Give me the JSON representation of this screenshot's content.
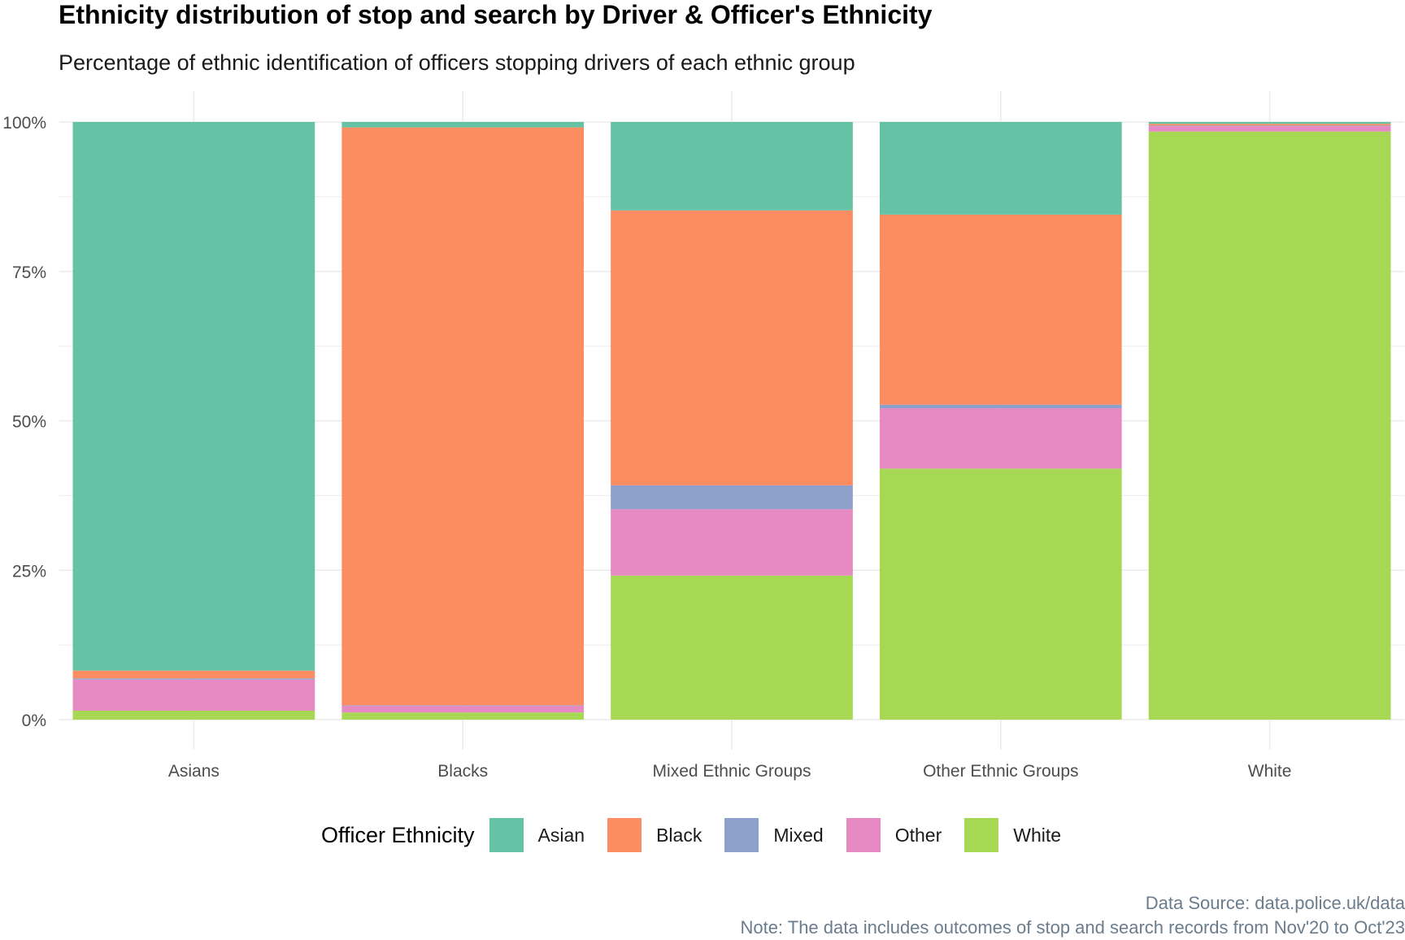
{
  "chart_data": {
    "type": "bar",
    "stacked": true,
    "title": "Ethnicity distribution of stop and search by Driver & Officer's Ethnicity",
    "subtitle": "Percentage of ethnic identification of officers stopping drivers of each ethnic group",
    "xlabel": "",
    "ylabel": "",
    "ylim": [
      0,
      100
    ],
    "yticks": [
      "0%",
      "25%",
      "50%",
      "75%",
      "100%"
    ],
    "categories": [
      "Asians",
      "Blacks",
      "Mixed Ethnic Groups",
      "Other Ethnic Groups",
      "White"
    ],
    "legend_title": "Officer Ethnicity",
    "legend_position": "bottom",
    "grid": true,
    "series": [
      {
        "name": "Asian",
        "color": "#66c2a5",
        "values": [
          91.8,
          0.9,
          14.8,
          15.5,
          0.3
        ]
      },
      {
        "name": "Black",
        "color": "#fc8d62",
        "values": [
          1.3,
          96.7,
          46.0,
          31.8,
          0.3
        ]
      },
      {
        "name": "Mixed",
        "color": "#8da0cb",
        "values": [
          0.2,
          0.1,
          4.0,
          0.6,
          0.1
        ]
      },
      {
        "name": "Other",
        "color": "#e78ac3",
        "values": [
          5.2,
          1.1,
          11.1,
          10.1,
          0.9
        ]
      },
      {
        "name": "White",
        "color": "#a6d854",
        "values": [
          1.5,
          1.2,
          24.1,
          42.0,
          98.4
        ]
      }
    ],
    "caption_lines": [
      "Data Source: data.police.uk/data",
      "Note: The data includes outcomes of stop and search records from Nov'20 to Oct'23"
    ]
  }
}
